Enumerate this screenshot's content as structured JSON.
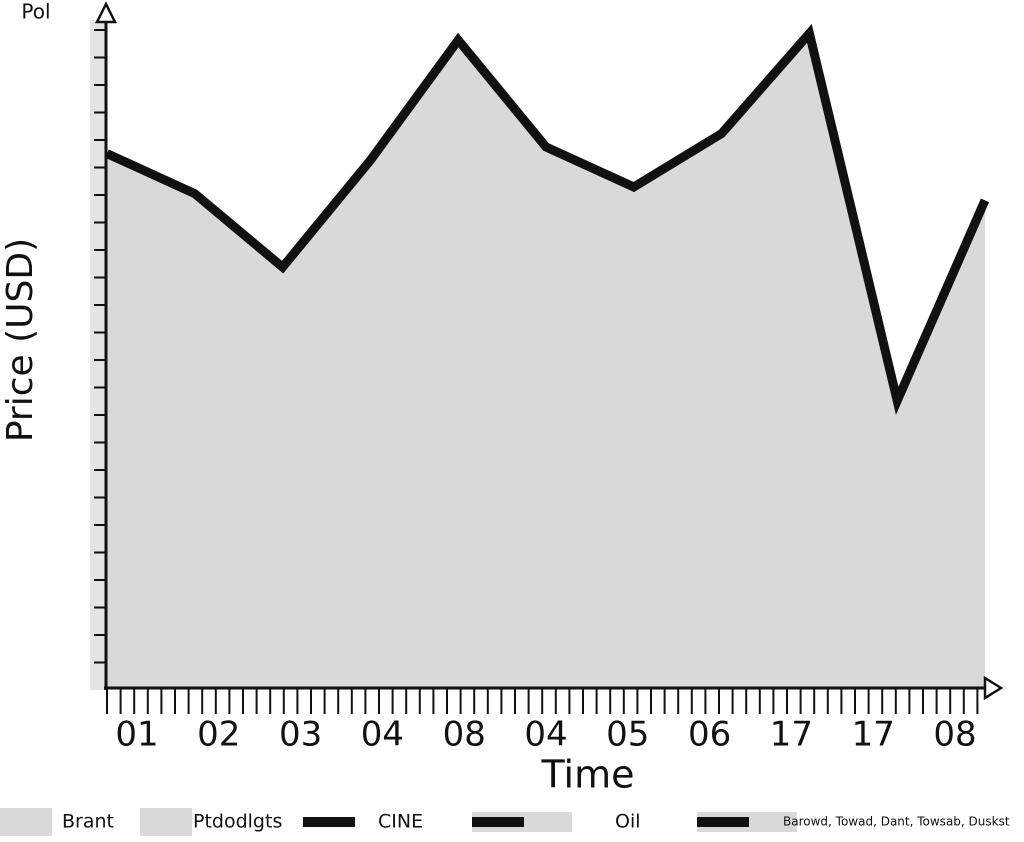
{
  "chart_data": {
    "type": "area",
    "title": "Pol",
    "x_label": "Time",
    "y_label": "Price (USD)",
    "categories": [
      "01",
      "02",
      "03",
      "04",
      "08",
      "04",
      "05",
      "06",
      "17",
      "17",
      "08"
    ],
    "values": [
      80,
      74,
      63,
      79,
      97,
      81,
      75,
      83,
      98,
      43,
      73
    ],
    "ylim": [
      0,
      100
    ],
    "color": "#111111",
    "fill": "#d9d9d9",
    "legend": [
      {
        "name": "Brant",
        "color": "#d9d9d9",
        "style": "box"
      },
      {
        "name": "Ptdodlgts",
        "color": "#d9d9d9",
        "style": "box"
      },
      {
        "name": "CINE",
        "color": "#111111",
        "style": "line"
      },
      {
        "name": "Oil",
        "color": "#111111",
        "style": "line-box"
      },
      {
        "name": "Barowd, Towad, Dant, Towsab, Duskst",
        "color": "#111111",
        "style": "line-box"
      }
    ]
  }
}
